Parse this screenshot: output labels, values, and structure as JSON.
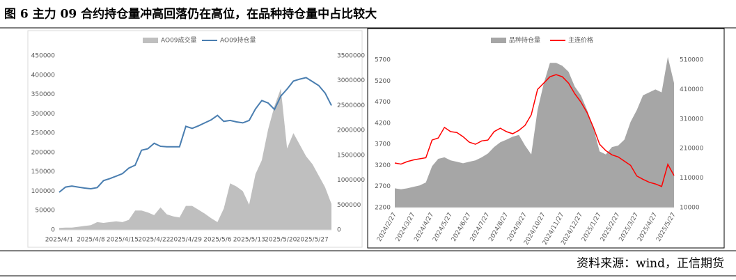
{
  "title": "图 6  主力 09 合约持仓量冲高回落仍在高位，在品种持仓量中占比较大",
  "source": "资料来源：wind，正信期货",
  "chart_data": [
    {
      "type": "combo",
      "categories": [
        "2025/4/1",
        null,
        null,
        null,
        null,
        "2025/4/8",
        null,
        null,
        null,
        null,
        "2025/4/15",
        null,
        null,
        null,
        null,
        "2025/4/22",
        null,
        null,
        null,
        null,
        "2025/4/29",
        null,
        null,
        null,
        null,
        "2025/5/6",
        null,
        null,
        null,
        null,
        "2025/5/13",
        null,
        null,
        null,
        null,
        "2025/5/20",
        null,
        null,
        null,
        null,
        "2025/5/27",
        null,
        null,
        null
      ],
      "series": [
        {
          "name": "AO09成交量",
          "type": "area",
          "color": "#bfbfbf",
          "values": [
            5000,
            6000,
            6000,
            8000,
            10000,
            12000,
            20000,
            18000,
            20000,
            22000,
            20000,
            26000,
            50000,
            50000,
            45000,
            38000,
            58000,
            40000,
            35000,
            32000,
            62000,
            62000,
            52000,
            42000,
            30000,
            20000,
            55000,
            120000,
            112000,
            100000,
            65000,
            144000,
            180000,
            260000,
            320000,
            365000,
            210000,
            250000,
            220000,
            190000,
            170000,
            140000,
            110000,
            67000
          ]
        },
        {
          "name": "AO09持仓量",
          "type": "line",
          "axis": "y2",
          "color": "#4a7eb0",
          "values": [
            756000,
            860000,
            880000,
            860000,
            840000,
            826000,
            850000,
            990000,
            1030000,
            1080000,
            1130000,
            1240000,
            1300000,
            1600000,
            1630000,
            1740000,
            1680000,
            1670000,
            1670000,
            1670000,
            2080000,
            2040000,
            2090000,
            2150000,
            2210000,
            2300000,
            2180000,
            2200000,
            2170000,
            2150000,
            2200000,
            2430000,
            2600000,
            2550000,
            2420000,
            2690000,
            2830000,
            2990000,
            3030000,
            3060000,
            2980000,
            2900000,
            2750000,
            2500000
          ]
        }
      ],
      "ylim": [
        0,
        450000
      ],
      "yticks": [
        0,
        50000,
        100000,
        150000,
        200000,
        250000,
        300000,
        350000,
        400000,
        450000
      ],
      "y2lim": [
        0,
        3500000
      ],
      "y2ticks": [
        0,
        500000,
        1000000,
        1500000,
        2000000,
        2500000,
        3000000,
        3500000
      ]
    },
    {
      "type": "combo",
      "categories": [
        "2024/2/27",
        null,
        null,
        "2024/3/27",
        null,
        null,
        "2024/4/27",
        null,
        null,
        "2024/5/27",
        null,
        null,
        "2024/6/27",
        null,
        null,
        "2024/7/27",
        null,
        null,
        "2024/8/27",
        null,
        null,
        "2024/9/27",
        null,
        null,
        "2024/10/27",
        null,
        null,
        "2024/11/27",
        null,
        null,
        "2024/12/27",
        null,
        null,
        "2025/1/27",
        null,
        null,
        "2025/2/27",
        null,
        null,
        "2025/3/27",
        null,
        null,
        "2025/4/27",
        null,
        null,
        "2025/5/27"
      ],
      "series": [
        {
          "name": "品种持仓量",
          "type": "area",
          "axis": "y2",
          "color": "#a6a6a6",
          "values": [
            75000,
            72000,
            75000,
            80000,
            85000,
            95000,
            150000,
            175000,
            180000,
            170000,
            165000,
            160000,
            165000,
            170000,
            180000,
            193000,
            215000,
            231000,
            240000,
            250000,
            256000,
            220000,
            190000,
            340000,
            430000,
            500000,
            500000,
            490000,
            470000,
            420000,
            390000,
            340000,
            280000,
            200000,
            190000,
            215000,
            220000,
            240000,
            300000,
            340000,
            390000,
            400000,
            410000,
            400000,
            520000,
            432000
          ]
        },
        {
          "name": "主连价格",
          "type": "line",
          "color": "#ff0000",
          "values": [
            3256,
            3230,
            3290,
            3330,
            3355,
            3380,
            3800,
            3850,
            4100,
            4000,
            3980,
            3880,
            3750,
            3700,
            3780,
            3800,
            4000,
            4080,
            4000,
            3950,
            4030,
            4150,
            4400,
            5000,
            5150,
            5300,
            5350,
            5300,
            5150,
            4900,
            4700,
            4450,
            4100,
            3700,
            3550,
            3450,
            3400,
            3300,
            3200,
            2950,
            2870,
            2800,
            2760,
            2700,
            3223,
            2960
          ]
        }
      ],
      "ylim": [
        2200,
        5700
      ],
      "yticks": [
        2200,
        2700,
        3200,
        3700,
        4200,
        4700,
        5200,
        5700
      ],
      "y2lim": [
        10000,
        510000
      ],
      "y2ticks": [
        10000,
        110000,
        210000,
        310000,
        410000,
        510000
      ]
    }
  ]
}
